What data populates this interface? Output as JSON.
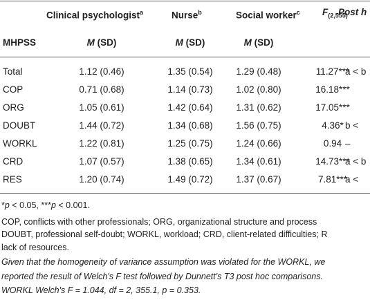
{
  "table": {
    "header": [
      {
        "text": "Clinical psychologist",
        "sup": "a"
      },
      {
        "text": "Nurse",
        "sup": "b"
      },
      {
        "text": "Social worker",
        "sup": "c"
      },
      {
        "symbol": "F",
        "sub": "(2,555)"
      },
      {
        "text": "Post h"
      }
    ],
    "subheader": {
      "label": "MHPSS",
      "stats": [
        {
          "symbol": "M",
          "text": "(SD)"
        },
        {
          "symbol": "M",
          "text": "(SD)"
        },
        {
          "symbol": "M",
          "text": "(SD)"
        }
      ]
    },
    "rows": [
      [
        "Total",
        "1.12 (0.46)",
        "1.35 (0.54)",
        "1.29 (0.48)",
        "11.27***",
        "a < b"
      ],
      [
        "COP",
        "0.71 (0.68)",
        "1.14 (0.73)",
        "1.02 (0.80)",
        "16.18***",
        null
      ],
      [
        "ORG",
        "1.05 (0.61)",
        "1.42 (0.64)",
        "1.31 (0.62)",
        "17.05***",
        null
      ],
      [
        "DOUBT",
        "1.44 (0.72)",
        "1.34 (0.68)",
        "1.56 (0.75)",
        "4.36*",
        "b <"
      ],
      [
        "WORKL",
        "1.22 (0.81)",
        "1.25 (0.75)",
        "1.24 (0.66)",
        "0.94",
        "–"
      ],
      [
        "CRD",
        "1.07 (0.57)",
        "1.38 (0.65)",
        "1.34 (0.61)",
        "14.73***",
        "a < b"
      ],
      [
        "RES",
        "1.20 (0.74)",
        "1.49 (0.72)",
        "1.37 (0.67)",
        "7.81***",
        "a <"
      ]
    ],
    "footnotes": [
      [
        {
          "text": "*"
        },
        {
          "text": "p",
          "italic": true
        },
        {
          "text": " < 0.05, ***"
        },
        {
          "text": "p",
          "italic": true
        },
        {
          "text": " < 0.001."
        }
      ],
      [
        {
          "text": "COP, conflicts with other professionals; ORG, organizational structure and process"
        }
      ],
      [
        {
          "text": "DOUBT, professional self-doubt; WORKL, workload; CRD, client-related difficulties; R"
        }
      ],
      [
        {
          "text": "lack of resources."
        }
      ],
      [
        {
          "text": "Given that the homogeneity of variance assumption was violated for the WORKL, we",
          "italic": true
        }
      ],
      [
        {
          "text": "reported the result of Welch's F test followed by Dunnett's T3 post hoc comparisons.",
          "italic": true
        }
      ],
      [
        {
          "text": "WORKL Welch's F = 1.044, df = 2, 355.1, p = 0.353.",
          "italic": true
        }
      ]
    ]
  }
}
